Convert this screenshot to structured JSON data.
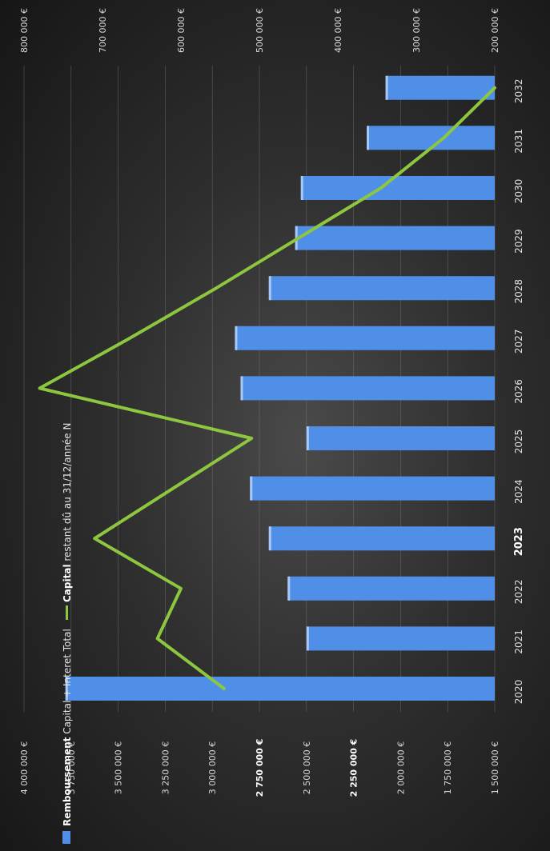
{
  "chart_data": {
    "type": "bar",
    "orientation": "rotated-90-clockwise",
    "categories": [
      "2020",
      "2021",
      "2022",
      "2023",
      "2024",
      "2025",
      "2026",
      "2027",
      "2028",
      "2029",
      "2030",
      "2031",
      "2032"
    ],
    "highlight_category": "2023",
    "series": [
      {
        "name_bold": "Remboursement",
        "name_rest": " Capital + Interet Total",
        "type": "bar",
        "axis": "primary",
        "color": "#4f8fe8",
        "values": [
          3780000,
          2500000,
          2600000,
          2700000,
          2800000,
          2500000,
          2850000,
          2880000,
          2700000,
          2560000,
          2530000,
          2180000,
          2080000
        ]
      },
      {
        "name_bold": "Capital",
        "name_rest": " restant dû au 31/12/année N",
        "type": "line",
        "axis": "secondary",
        "color": "#8dc63f",
        "values": [
          545000,
          630000,
          600000,
          710000,
          610000,
          510000,
          780000,
          665000,
          555000,
          450000,
          345000,
          265000,
          200000
        ]
      }
    ],
    "primary_axis": {
      "min": 1500000,
      "max": 4000000,
      "step": 250000,
      "tick_labels": [
        "1 500 000 €",
        "1 750 000 €",
        "2 000 000 €",
        "2 250 000 €",
        "2 500 000 €",
        "2 750 000 €",
        "3 000 000 €",
        "3 250 000 €",
        "3 500 000 €",
        "3 750 000 €",
        "4 000 000 €"
      ],
      "bold_ticks": [
        "2 250 000 €",
        "2 750 000 €"
      ]
    },
    "secondary_axis": {
      "min": 200000,
      "max": 800000,
      "step": 100000,
      "tick_labels": [
        "200 000 €",
        "300 000 €",
        "400 000 €",
        "500 000 €",
        "600 000 €",
        "700 000 €",
        "800 000 €"
      ]
    },
    "grid": true,
    "legend_position": "bottom"
  }
}
